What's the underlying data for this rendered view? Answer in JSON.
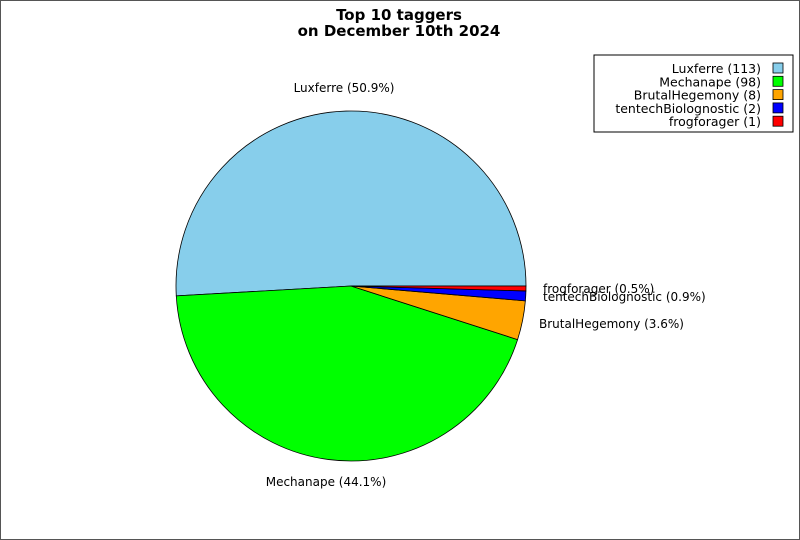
{
  "chart_data": {
    "type": "pie",
    "title": [
      "Top 10 taggers",
      "on December 10th 2024"
    ],
    "series": [
      {
        "name": "Luxferre",
        "value": 113,
        "label": "Luxferre (50.9%)",
        "legend": "Luxferre (113)",
        "color": "#87CEEB"
      },
      {
        "name": "Mechanape",
        "value": 98,
        "label": "Mechanape (44.1%)",
        "legend": "Mechanape (98)",
        "color": "#00FF00"
      },
      {
        "name": "BrutalHegemony",
        "value": 8,
        "label": "BrutalHegemony (3.6%)",
        "legend": "BrutalHegemony (8)",
        "color": "#FFA500"
      },
      {
        "name": "tentechBiolognostic",
        "value": 2,
        "label": "tentechBiolognostic (0.9%)",
        "legend": "tentechBiolognostic (2)",
        "color": "#0000FF"
      },
      {
        "name": "frogforager",
        "value": 1,
        "label": "frogforager (0.5%)",
        "legend": "frogforager (1)",
        "color": "#FF0000"
      }
    ],
    "start_angle_deg": 0,
    "direction": "counterclockwise",
    "legend_placement": "top-right"
  }
}
